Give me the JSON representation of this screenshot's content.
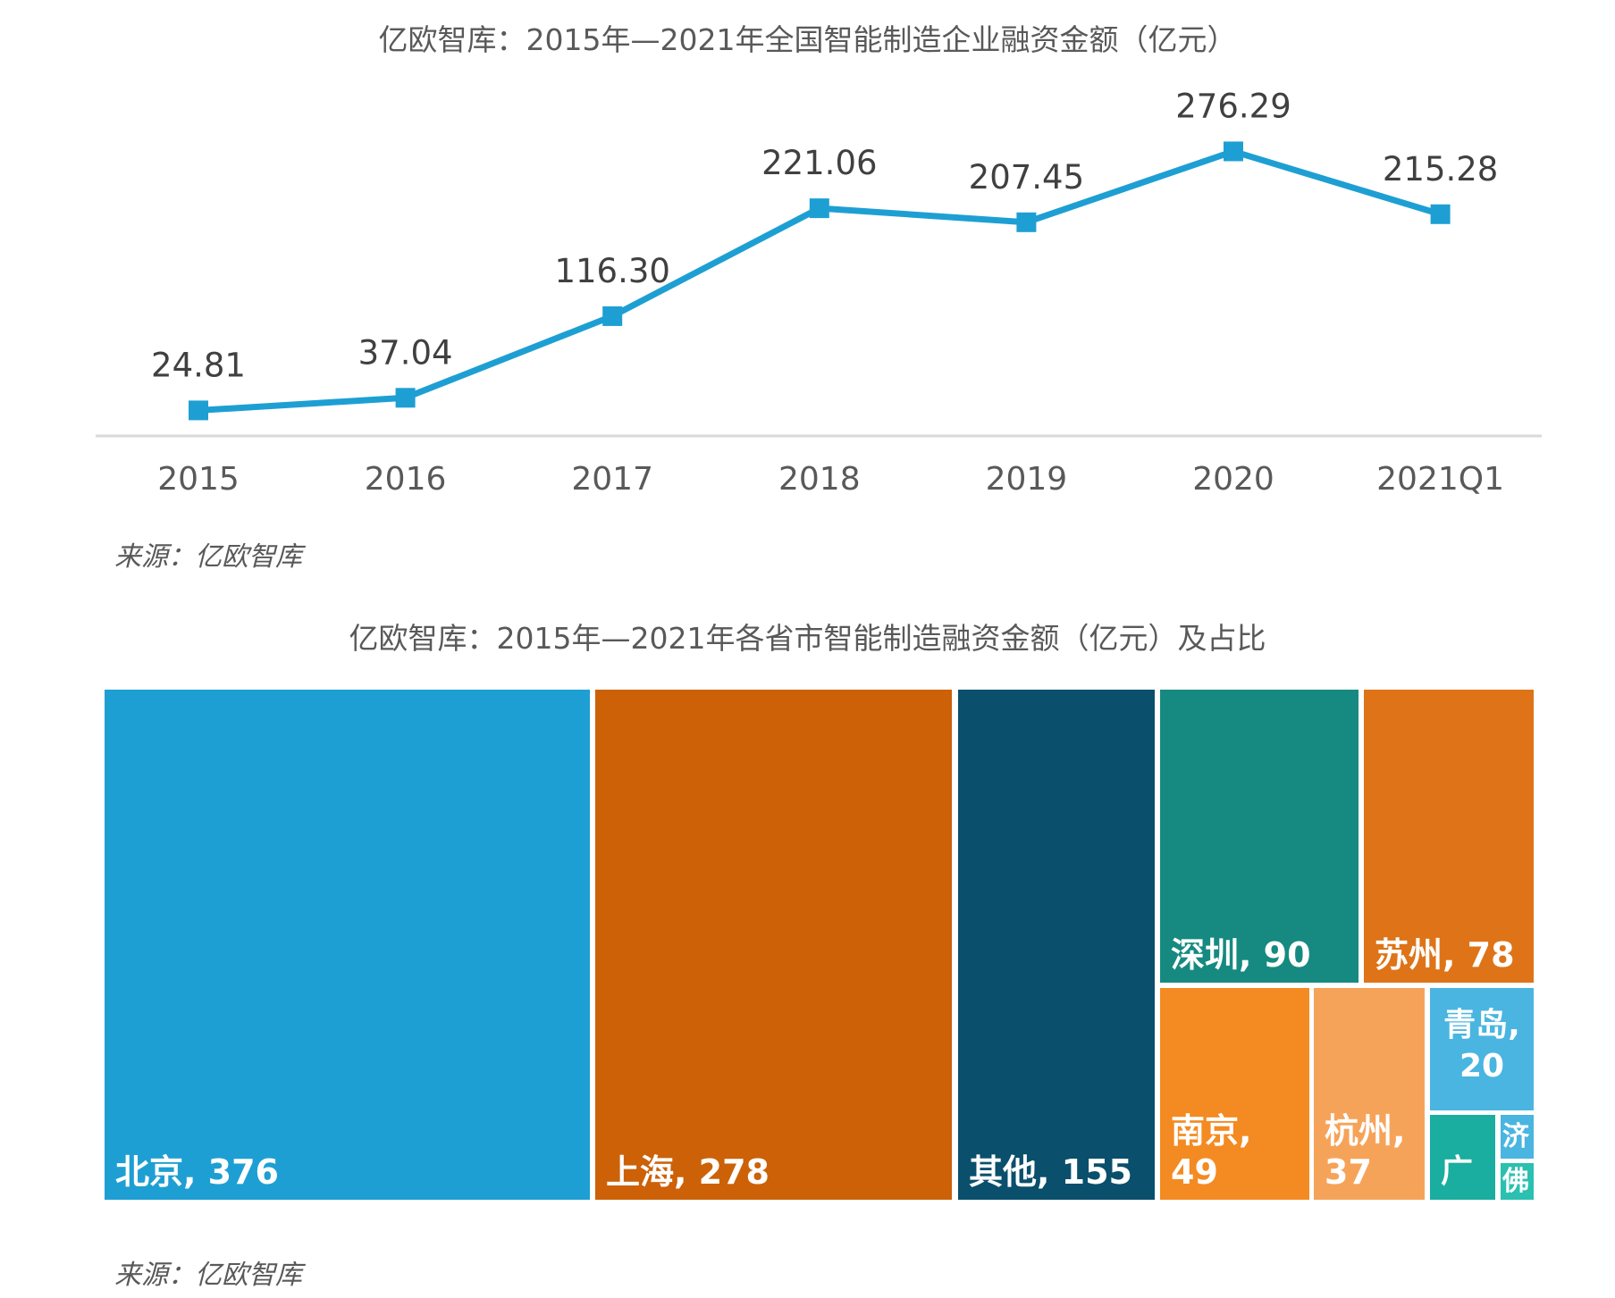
{
  "chart_data": [
    {
      "type": "line",
      "title": "亿欧智库：2015年—2021年全国智能制造企业融资金额（亿元）",
      "categories": [
        "2015",
        "2016",
        "2017",
        "2018",
        "2019",
        "2020",
        "2021Q1"
      ],
      "values": [
        24.81,
        37.04,
        116.3,
        221.06,
        207.45,
        276.29,
        215.28
      ],
      "value_labels": [
        "24.81",
        "37.04",
        "116.30",
        "221.06",
        "207.45",
        "276.29",
        "215.28"
      ],
      "ylim": [
        0,
        300
      ],
      "grid": false,
      "marker": "square",
      "color": "#1E9FD3",
      "source": "来源：亿欧智库"
    },
    {
      "type": "treemap",
      "title": "亿欧智库：2015年—2021年各省市智能制造融资金额（亿元）及占比",
      "items": [
        {
          "name": "北京",
          "value": 376,
          "label": "北京, 376",
          "color": "#1E9FD3"
        },
        {
          "name": "上海",
          "value": 278,
          "label": "上海, 278",
          "color": "#CC6108"
        },
        {
          "name": "其他",
          "value": 155,
          "label": "其他, 155",
          "color": "#0A4F6C"
        },
        {
          "name": "深圳",
          "value": 90,
          "label": "深圳, 90",
          "color": "#168A80"
        },
        {
          "name": "苏州",
          "value": 78,
          "label": "苏州, 78",
          "color": "#DE7417"
        },
        {
          "name": "南京",
          "value": 49,
          "label": "南京, 49",
          "color": "#F38B22"
        },
        {
          "name": "杭州",
          "value": 37,
          "label": "杭州, 37",
          "color": "#F6A35A"
        },
        {
          "name": "青岛",
          "value": 20,
          "label": "青岛, 20",
          "color": "#4AB5E0"
        },
        {
          "name": "广",
          "label": "广",
          "color": "#19AE9F"
        },
        {
          "name": "济",
          "label": "济",
          "color": "#4AB5E0"
        },
        {
          "name": "佛",
          "label": "佛",
          "color": "#2BC0B0"
        }
      ],
      "source": "来源：亿欧智库"
    }
  ]
}
